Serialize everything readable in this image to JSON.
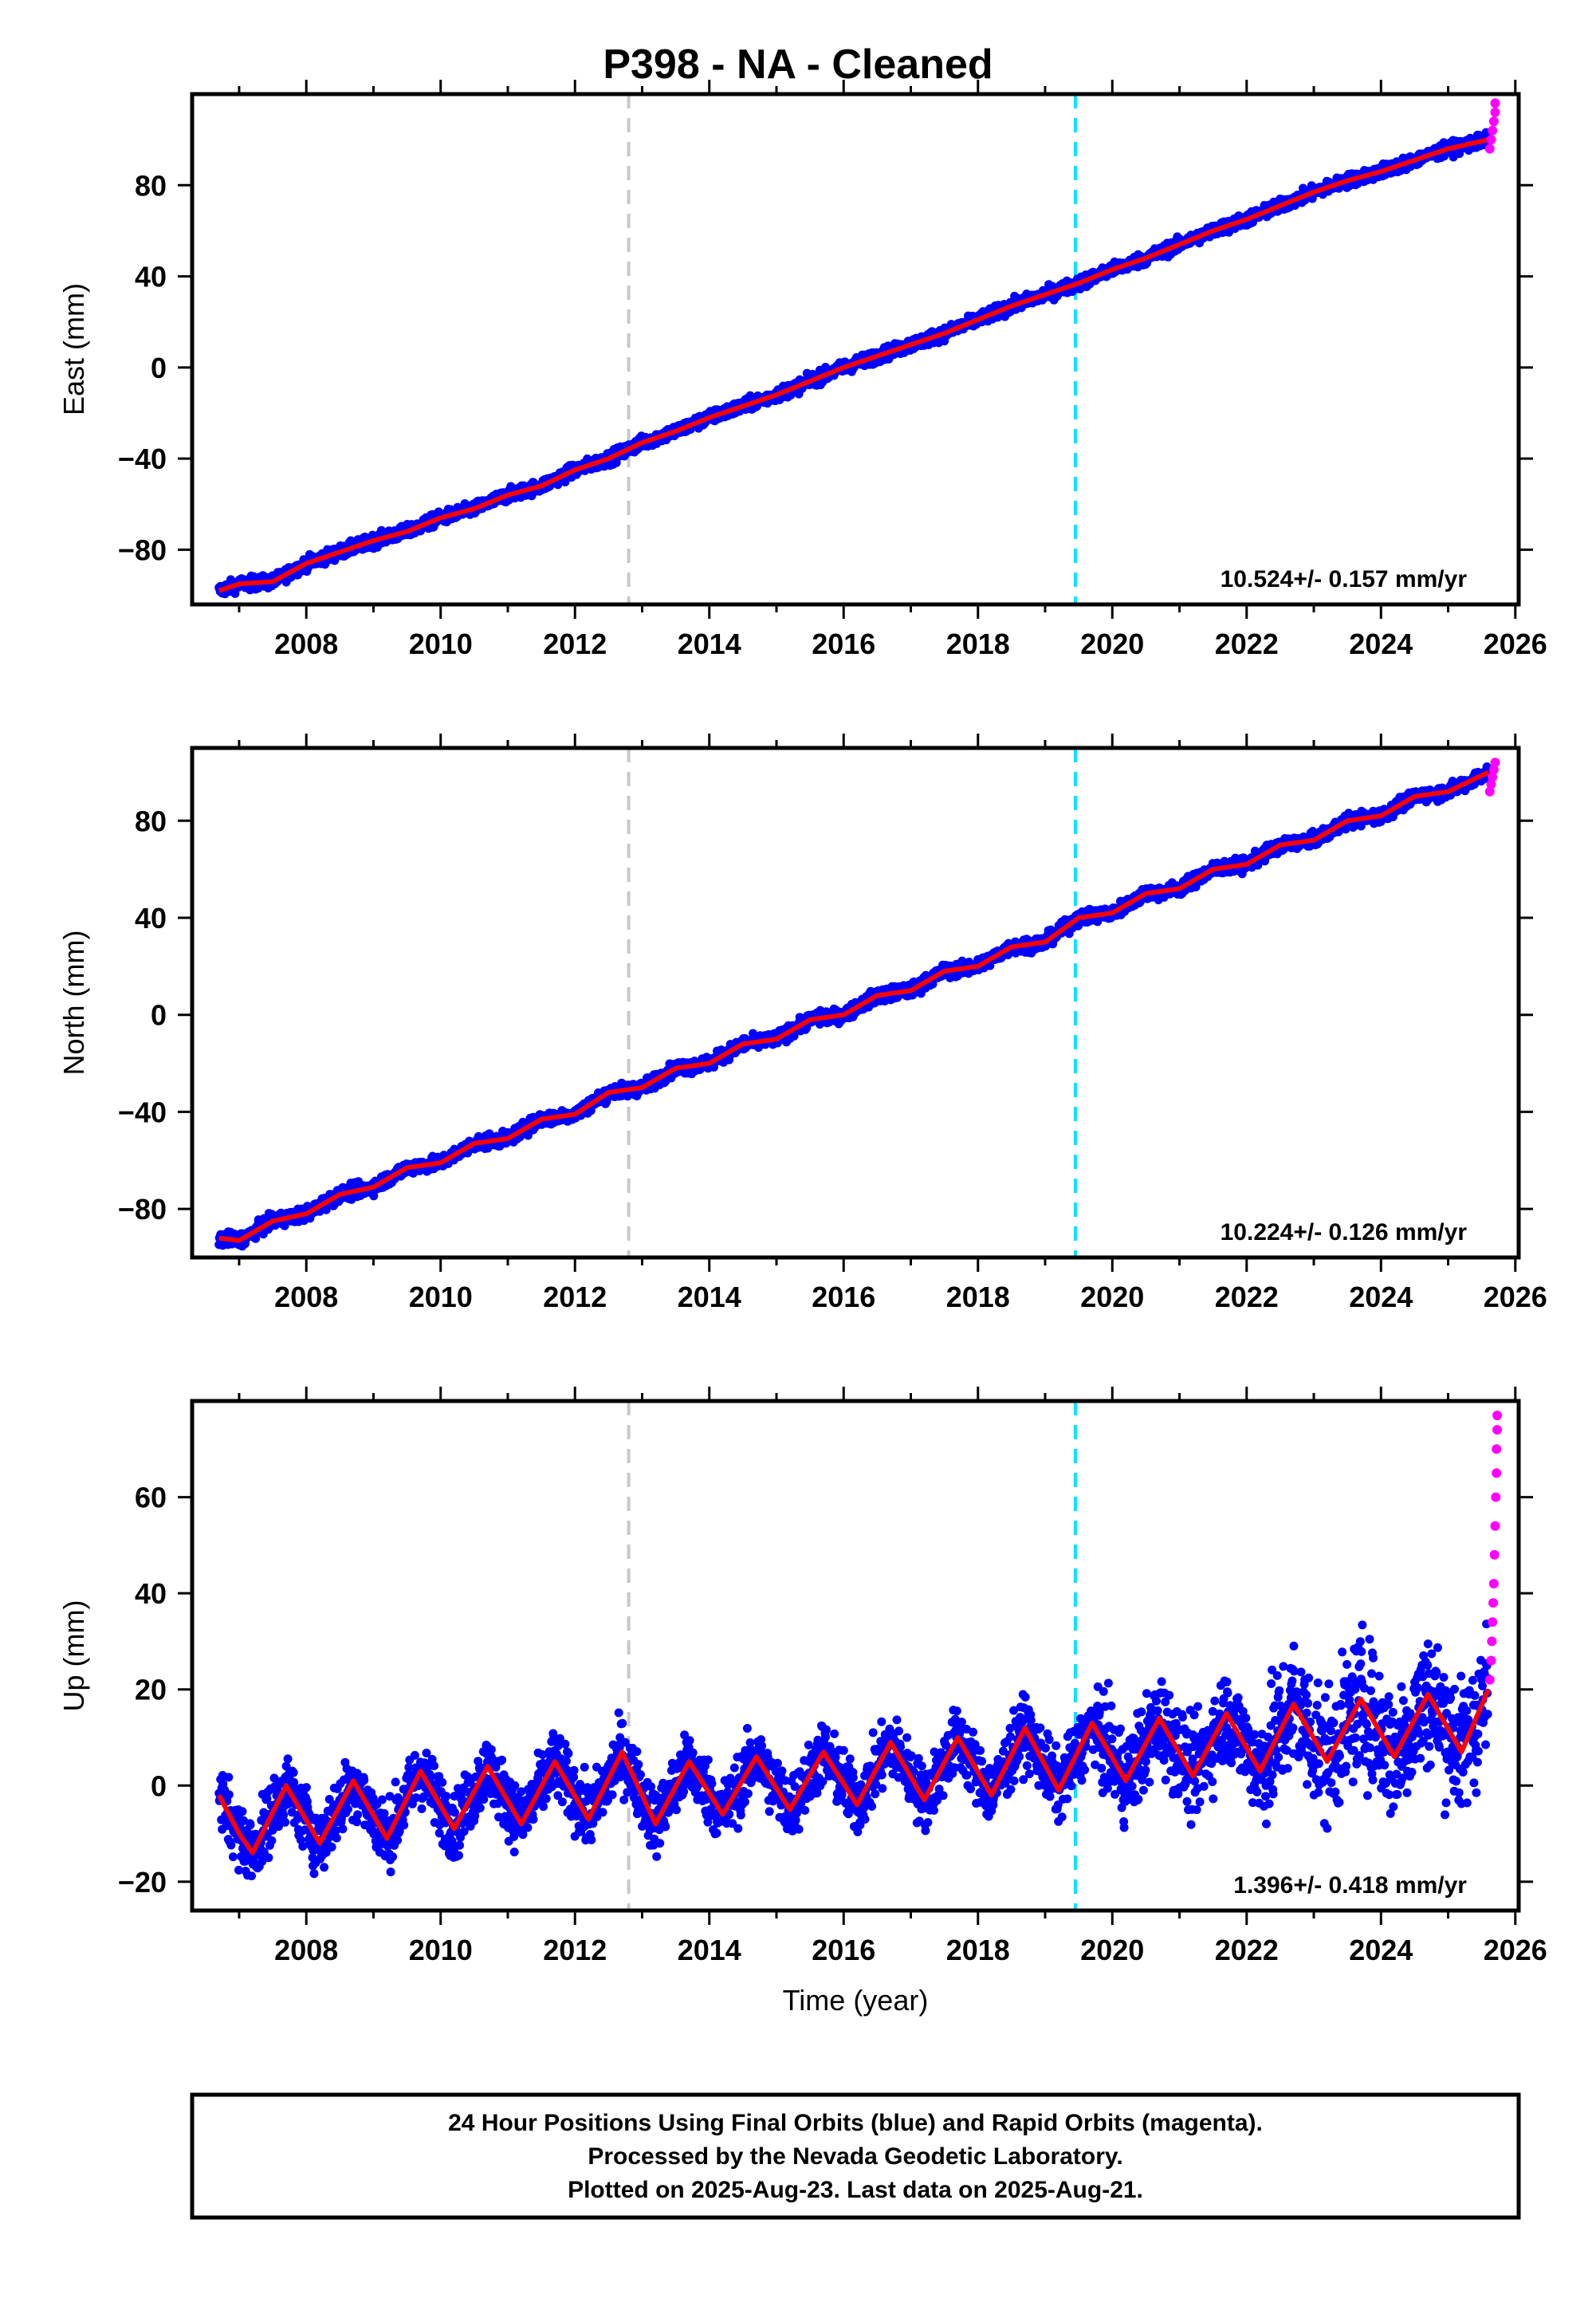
{
  "title": "P398  - NA - Cleaned",
  "footer": {
    "line1": "24 Hour Positions Using Final Orbits (blue) and Rapid Orbits (magenta).",
    "line2": "Processed by the Nevada Geodetic Laboratory.",
    "line3": "Plotted on 2025-Aug-23. Last data on 2025-Aug-21."
  },
  "colors": {
    "final": "#0000ff",
    "rapid": "#ff00ff",
    "model": "#ff0000",
    "line1": "#c8c8c8",
    "line2": "#00e5ff"
  },
  "chart_data": [
    {
      "type": "scatter",
      "ylabel": "East (mm)",
      "xlabel": "",
      "xlim": [
        2006.3,
        2026.05
      ],
      "ylim": [
        -104,
        120
      ],
      "xticks": [
        2008,
        2010,
        2012,
        2014,
        2016,
        2018,
        2020,
        2022,
        2024,
        2026
      ],
      "xtick_labels": [
        "2008",
        "2010",
        "2012",
        "2014",
        "2016",
        "2018",
        "2020",
        "2022",
        "2024",
        "2026"
      ],
      "yticks": [
        -80,
        -40,
        0,
        40,
        80
      ],
      "ytick_labels": [
        "−80",
        "−40",
        "0",
        "40",
        "80"
      ],
      "vlines": [
        2012.8,
        2019.45
      ],
      "rate": "10.524+/- 0.157 mm/yr",
      "data_range": [
        2006.7,
        2025.6
      ],
      "model": [
        [
          2006.7,
          -98
        ],
        [
          2007,
          -95
        ],
        [
          2007.5,
          -94
        ],
        [
          2008,
          -86
        ],
        [
          2008.5,
          -81
        ],
        [
          2009,
          -76
        ],
        [
          2009.5,
          -72
        ],
        [
          2010,
          -66
        ],
        [
          2010.5,
          -62
        ],
        [
          2011,
          -56
        ],
        [
          2011.5,
          -52
        ],
        [
          2012,
          -45
        ],
        [
          2012.5,
          -40
        ],
        [
          2013,
          -33
        ],
        [
          2013.5,
          -28
        ],
        [
          2014,
          -22
        ],
        [
          2014.5,
          -17
        ],
        [
          2015,
          -12
        ],
        [
          2015.5,
          -6
        ],
        [
          2016,
          0
        ],
        [
          2016.5,
          5
        ],
        [
          2017,
          10
        ],
        [
          2017.5,
          15
        ],
        [
          2018,
          21
        ],
        [
          2018.5,
          27
        ],
        [
          2019,
          32
        ],
        [
          2019.5,
          37
        ],
        [
          2020,
          43
        ],
        [
          2020.5,
          48
        ],
        [
          2021,
          54
        ],
        [
          2021.5,
          60
        ],
        [
          2022,
          65
        ],
        [
          2022.5,
          71
        ],
        [
          2023,
          77
        ],
        [
          2023.5,
          82
        ],
        [
          2024,
          86
        ],
        [
          2024.5,
          91
        ],
        [
          2025,
          96
        ],
        [
          2025.6,
          100
        ]
      ],
      "rapid": [
        [
          2025.62,
          96
        ],
        [
          2025.64,
          100
        ],
        [
          2025.66,
          104
        ],
        [
          2025.68,
          108
        ],
        [
          2025.7,
          112
        ],
        [
          2025.7,
          116
        ]
      ]
    },
    {
      "type": "scatter",
      "ylabel": "North (mm)",
      "xlabel": "",
      "xlim": [
        2006.3,
        2026.05
      ],
      "ylim": [
        -100,
        110
      ],
      "xticks": [
        2008,
        2010,
        2012,
        2014,
        2016,
        2018,
        2020,
        2022,
        2024,
        2026
      ],
      "xtick_labels": [
        "2008",
        "2010",
        "2012",
        "2014",
        "2016",
        "2018",
        "2020",
        "2022",
        "2024",
        "2026"
      ],
      "yticks": [
        -80,
        -40,
        0,
        40,
        80
      ],
      "ytick_labels": [
        "−80",
        "−40",
        "0",
        "40",
        "80"
      ],
      "vlines": [
        2012.8,
        2019.45
      ],
      "rate": "10.224+/- 0.126 mm/yr",
      "data_range": [
        2006.7,
        2025.6
      ],
      "model": [
        [
          2006.7,
          -92
        ],
        [
          2007,
          -93
        ],
        [
          2007.5,
          -85
        ],
        [
          2008,
          -82
        ],
        [
          2008.5,
          -74
        ],
        [
          2009,
          -71
        ],
        [
          2009.5,
          -63
        ],
        [
          2010,
          -61
        ],
        [
          2010.5,
          -53
        ],
        [
          2011,
          -51
        ],
        [
          2011.5,
          -43
        ],
        [
          2012,
          -41
        ],
        [
          2012.5,
          -32
        ],
        [
          2013,
          -30
        ],
        [
          2013.5,
          -22
        ],
        [
          2014,
          -20
        ],
        [
          2014.5,
          -12
        ],
        [
          2015,
          -10
        ],
        [
          2015.5,
          -2
        ],
        [
          2016,
          0
        ],
        [
          2016.5,
          8
        ],
        [
          2017,
          10
        ],
        [
          2017.5,
          18
        ],
        [
          2018,
          20
        ],
        [
          2018.5,
          28
        ],
        [
          2019,
          30
        ],
        [
          2019.5,
          40
        ],
        [
          2020,
          42
        ],
        [
          2020.5,
          50
        ],
        [
          2021,
          52
        ],
        [
          2021.5,
          60
        ],
        [
          2022,
          62
        ],
        [
          2022.5,
          70
        ],
        [
          2023,
          72
        ],
        [
          2023.5,
          80
        ],
        [
          2024,
          82
        ],
        [
          2024.5,
          90
        ],
        [
          2025,
          92
        ],
        [
          2025.6,
          100
        ]
      ],
      "rapid": [
        [
          2025.62,
          92
        ],
        [
          2025.64,
          95
        ],
        [
          2025.66,
          98
        ],
        [
          2025.68,
          101
        ],
        [
          2025.7,
          104
        ]
      ]
    },
    {
      "type": "scatter",
      "ylabel": "Up (mm)",
      "xlabel": "Time (year)",
      "xlim": [
        2006.3,
        2026.05
      ],
      "ylim": [
        -26,
        80
      ],
      "xticks": [
        2008,
        2010,
        2012,
        2014,
        2016,
        2018,
        2020,
        2022,
        2024,
        2026
      ],
      "xtick_labels": [
        "2008",
        "2010",
        "2012",
        "2014",
        "2016",
        "2018",
        "2020",
        "2022",
        "2024",
        "2026"
      ],
      "yticks": [
        -20,
        0,
        20,
        40,
        60
      ],
      "ytick_labels": [
        "−20",
        "0",
        "20",
        "40",
        "60"
      ],
      "vlines": [
        2012.8,
        2019.45
      ],
      "rate": "1.396+/- 0.418 mm/yr",
      "data_range": [
        2006.7,
        2025.6
      ],
      "model": [
        [
          2006.7,
          -2
        ],
        [
          2007,
          -10
        ],
        [
          2007.2,
          -14
        ],
        [
          2007.7,
          0
        ],
        [
          2008.2,
          -12
        ],
        [
          2008.7,
          1
        ],
        [
          2009.2,
          -11
        ],
        [
          2009.7,
          3
        ],
        [
          2010.2,
          -9
        ],
        [
          2010.7,
          4
        ],
        [
          2011.2,
          -8
        ],
        [
          2011.7,
          5
        ],
        [
          2012.2,
          -7
        ],
        [
          2012.7,
          7
        ],
        [
          2013.2,
          -8
        ],
        [
          2013.7,
          5
        ],
        [
          2014.2,
          -6
        ],
        [
          2014.7,
          6
        ],
        [
          2015.2,
          -5
        ],
        [
          2015.7,
          7
        ],
        [
          2016.2,
          -4
        ],
        [
          2016.7,
          9
        ],
        [
          2017.2,
          -3
        ],
        [
          2017.7,
          10
        ],
        [
          2018.2,
          -2
        ],
        [
          2018.7,
          12
        ],
        [
          2019.2,
          -1
        ],
        [
          2019.7,
          13
        ],
        [
          2020.2,
          1
        ],
        [
          2020.7,
          14
        ],
        [
          2021.2,
          2
        ],
        [
          2021.7,
          15
        ],
        [
          2022.2,
          3
        ],
        [
          2022.7,
          17
        ],
        [
          2023.2,
          5
        ],
        [
          2023.7,
          18
        ],
        [
          2024.2,
          6
        ],
        [
          2024.7,
          19
        ],
        [
          2025.2,
          7
        ],
        [
          2025.6,
          20
        ]
      ],
      "rapid": [
        [
          2025.62,
          22
        ],
        [
          2025.64,
          26
        ],
        [
          2025.65,
          30
        ],
        [
          2025.66,
          34
        ],
        [
          2025.67,
          38
        ],
        [
          2025.68,
          42
        ],
        [
          2025.69,
          48
        ],
        [
          2025.7,
          54
        ],
        [
          2025.71,
          60
        ],
        [
          2025.72,
          65
        ],
        [
          2025.72,
          70
        ],
        [
          2025.73,
          74
        ],
        [
          2025.73,
          77
        ]
      ]
    }
  ]
}
